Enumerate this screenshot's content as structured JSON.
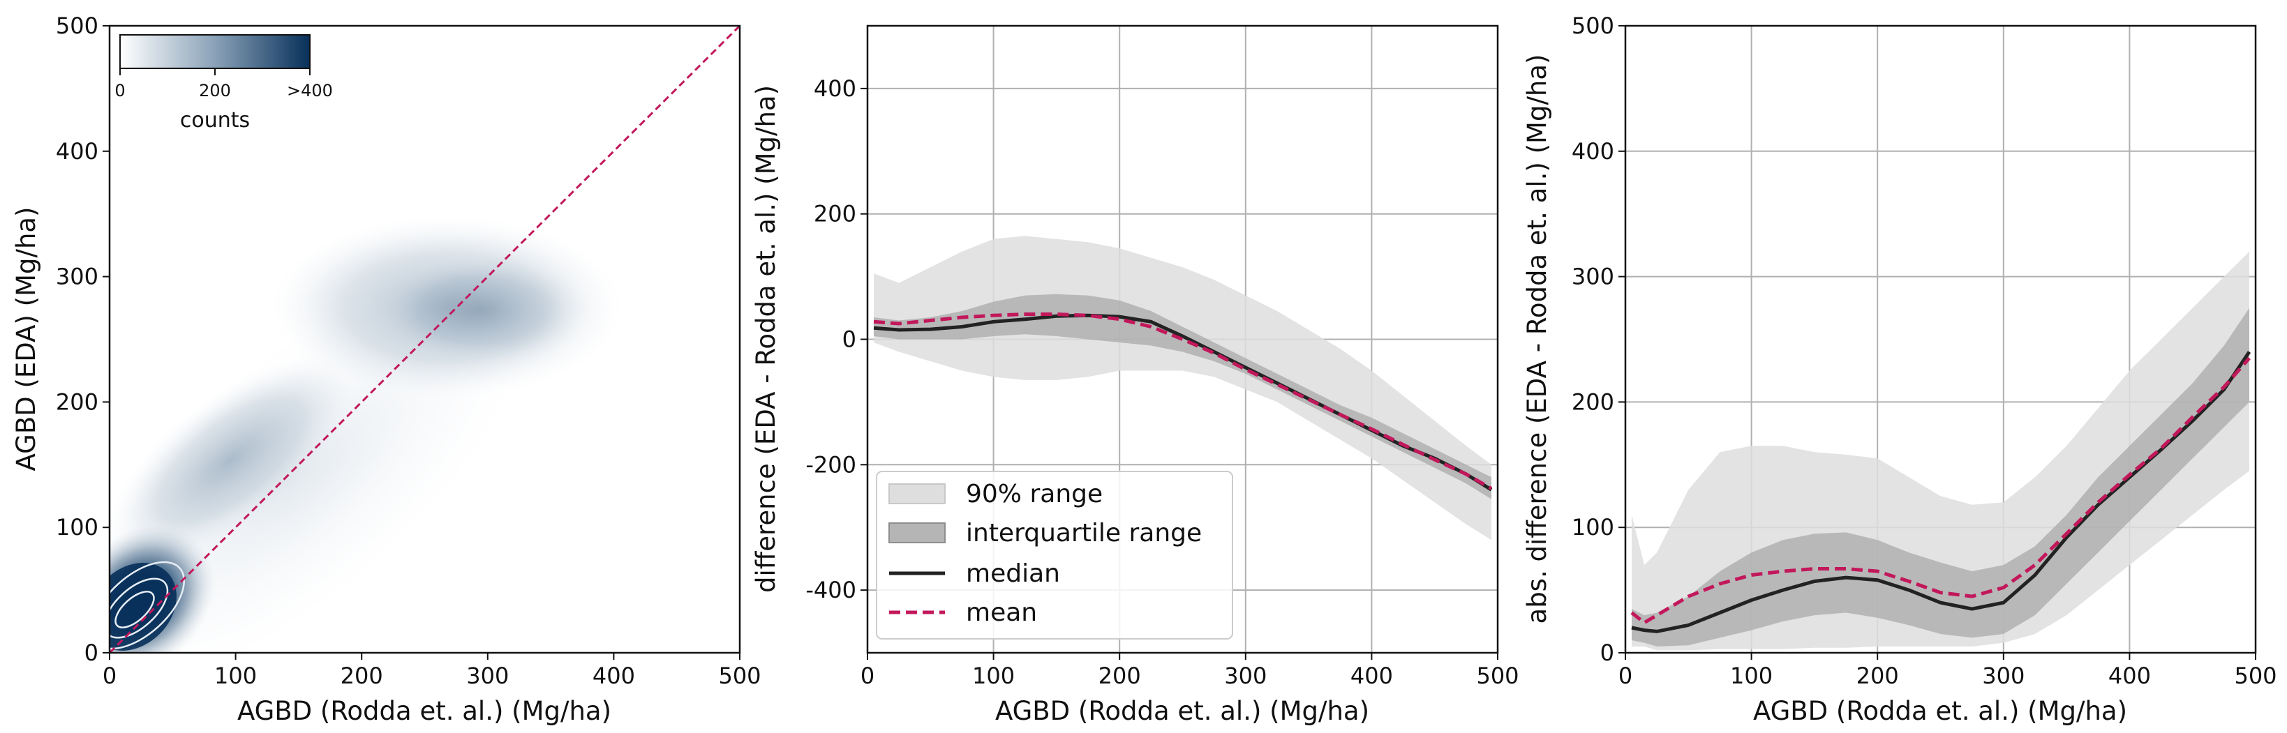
{
  "colors": {
    "density_dark": "#08305a",
    "identity_line": "#c2185b",
    "range90": "#dedede",
    "range_iqr": "#b5b5b5",
    "median": "#222222",
    "mean": "#c2185b",
    "grid": "#b0b0b0",
    "contour": "#e6edf5"
  },
  "chart_data": [
    {
      "type": "heatmap",
      "panel": "left",
      "xlabel": "AGBD (Rodda et. al.) (Mg/ha)",
      "ylabel": "AGBD (EDA) (Mg/ha)",
      "xlim": [
        0,
        500
      ],
      "ylim": [
        0,
        500
      ],
      "xticks": [
        0,
        100,
        200,
        300,
        400,
        500
      ],
      "yticks": [
        0,
        100,
        200,
        300,
        400,
        500
      ],
      "grid": false,
      "identity_line": {
        "from": [
          0,
          0
        ],
        "to": [
          500,
          500
        ],
        "style": "dashed"
      },
      "density_clusters": [
        {
          "center": [
            18,
            32
          ],
          "peak_counts": 400
        },
        {
          "center": [
            280,
            275
          ],
          "peak_counts": 150
        }
      ],
      "contours_center": [
        20,
        35
      ],
      "colorbar": {
        "label": "counts",
        "ticks": [
          "0",
          "200",
          ">400"
        ],
        "tick_values": [
          0,
          200,
          400
        ],
        "range": [
          0,
          400
        ],
        "position": "top-left"
      }
    },
    {
      "type": "area",
      "panel": "middle",
      "xlabel": "AGBD (Rodda et. al.) (Mg/ha)",
      "ylabel": "difference (EDA - Rodda et. al.) (Mg/ha)",
      "xlim": [
        0,
        500
      ],
      "ylim": [
        -500,
        500
      ],
      "xticks": [
        0,
        100,
        200,
        300,
        400,
        500
      ],
      "yticks": [
        -400,
        -200,
        0,
        200,
        400
      ],
      "grid": true,
      "legend_position": "lower-left",
      "legend": [
        "90% range",
        "interquartile range",
        "median",
        "mean"
      ],
      "x": [
        5,
        25,
        50,
        75,
        100,
        125,
        150,
        175,
        200,
        225,
        250,
        275,
        300,
        325,
        350,
        375,
        400,
        425,
        450,
        475,
        495
      ],
      "series": [
        {
          "name": "90% range (upper)",
          "values": [
            105,
            90,
            115,
            140,
            160,
            165,
            160,
            155,
            145,
            130,
            115,
            95,
            70,
            45,
            15,
            -15,
            -50,
            -90,
            -130,
            -170,
            -200
          ]
        },
        {
          "name": "90% range (lower)",
          "values": [
            -5,
            -20,
            -35,
            -50,
            -60,
            -65,
            -65,
            -60,
            -50,
            -50,
            -50,
            -60,
            -80,
            -100,
            -130,
            -160,
            -190,
            -225,
            -260,
            -295,
            -320
          ]
        },
        {
          "name": "interquartile range (upper)",
          "values": [
            35,
            30,
            35,
            45,
            60,
            70,
            72,
            70,
            62,
            45,
            20,
            -5,
            -30,
            -55,
            -80,
            -105,
            -125,
            -150,
            -175,
            -200,
            -220
          ]
        },
        {
          "name": "interquartile range (lower)",
          "values": [
            5,
            0,
            0,
            0,
            5,
            8,
            5,
            0,
            -5,
            -10,
            -20,
            -35,
            -55,
            -80,
            -105,
            -130,
            -155,
            -180,
            -205,
            -230,
            -255
          ]
        },
        {
          "name": "median",
          "values": [
            18,
            15,
            16,
            20,
            28,
            32,
            37,
            38,
            36,
            28,
            5,
            -20,
            -45,
            -70,
            -95,
            -120,
            -145,
            -170,
            -190,
            -215,
            -240
          ]
        },
        {
          "name": "mean",
          "values": [
            28,
            25,
            30,
            35,
            38,
            40,
            40,
            38,
            32,
            20,
            0,
            -22,
            -48,
            -72,
            -96,
            -120,
            -143,
            -168,
            -192,
            -215,
            -238
          ]
        }
      ]
    },
    {
      "type": "area",
      "panel": "right",
      "xlabel": "AGBD (Rodda et. al.) (Mg/ha)",
      "ylabel": "abs. difference (EDA - Rodda et. al.) (Mg/ha)",
      "xlim": [
        0,
        500
      ],
      "ylim": [
        0,
        500
      ],
      "xticks": [
        0,
        100,
        200,
        300,
        400,
        500
      ],
      "yticks": [
        0,
        100,
        200,
        300,
        400,
        500
      ],
      "grid": true,
      "x": [
        5,
        15,
        25,
        50,
        75,
        100,
        125,
        150,
        175,
        200,
        225,
        250,
        275,
        300,
        325,
        350,
        375,
        400,
        425,
        450,
        475,
        495
      ],
      "series": [
        {
          "name": "90% range (upper)",
          "values": [
            110,
            70,
            80,
            130,
            160,
            165,
            165,
            160,
            158,
            155,
            140,
            125,
            118,
            120,
            140,
            165,
            195,
            225,
            250,
            275,
            300,
            320
          ]
        },
        {
          "name": "90% range (lower)",
          "values": [
            5,
            5,
            2,
            2,
            3,
            3,
            3,
            4,
            4,
            5,
            5,
            5,
            5,
            8,
            15,
            30,
            50,
            70,
            90,
            110,
            130,
            145
          ]
        },
        {
          "name": "interquartile range (upper)",
          "values": [
            35,
            30,
            32,
            45,
            65,
            80,
            90,
            95,
            96,
            90,
            80,
            72,
            65,
            70,
            85,
            110,
            140,
            165,
            190,
            215,
            245,
            275
          ]
        },
        {
          "name": "interquartile range (lower)",
          "values": [
            10,
            8,
            5,
            6,
            12,
            18,
            25,
            30,
            32,
            28,
            22,
            15,
            12,
            15,
            30,
            55,
            80,
            105,
            130,
            155,
            180,
            200
          ]
        },
        {
          "name": "median",
          "values": [
            20,
            18,
            17,
            22,
            32,
            42,
            50,
            57,
            60,
            58,
            50,
            40,
            35,
            40,
            62,
            92,
            118,
            140,
            162,
            185,
            210,
            240
          ]
        },
        {
          "name": "mean",
          "values": [
            32,
            24,
            30,
            45,
            55,
            62,
            65,
            67,
            67,
            65,
            57,
            48,
            45,
            52,
            70,
            95,
            120,
            142,
            163,
            188,
            212,
            235
          ]
        }
      ]
    }
  ]
}
